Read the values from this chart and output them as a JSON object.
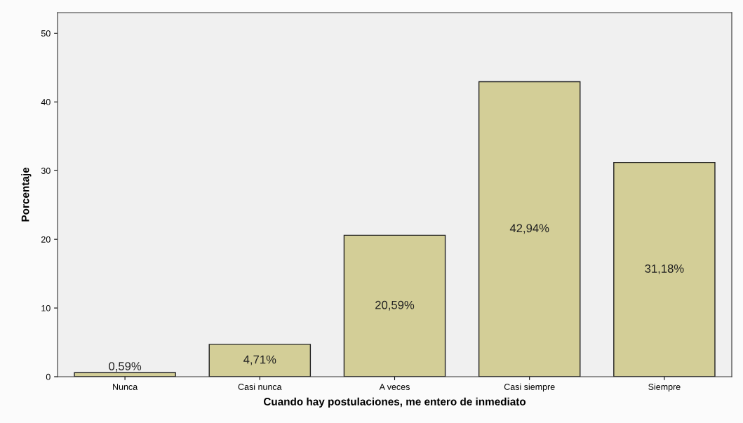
{
  "chart_data": {
    "type": "bar",
    "xlabel": "Cuando hay postulaciones, me entero de inmediato",
    "ylabel": "Porcentaje",
    "categories": [
      "Nunca",
      "Casi nunca",
      "A veces",
      "Casi siempre",
      "Siempre"
    ],
    "values": [
      0.59,
      4.71,
      20.59,
      42.94,
      31.18
    ],
    "value_labels": [
      "0,59%",
      "4,71%",
      "20,59%",
      "42,94%",
      "31,18%"
    ],
    "color": "#d3ce97",
    "ylim": [
      0,
      53
    ],
    "yticks": [
      0,
      10,
      20,
      30,
      40,
      50
    ],
    "grid": false
  }
}
